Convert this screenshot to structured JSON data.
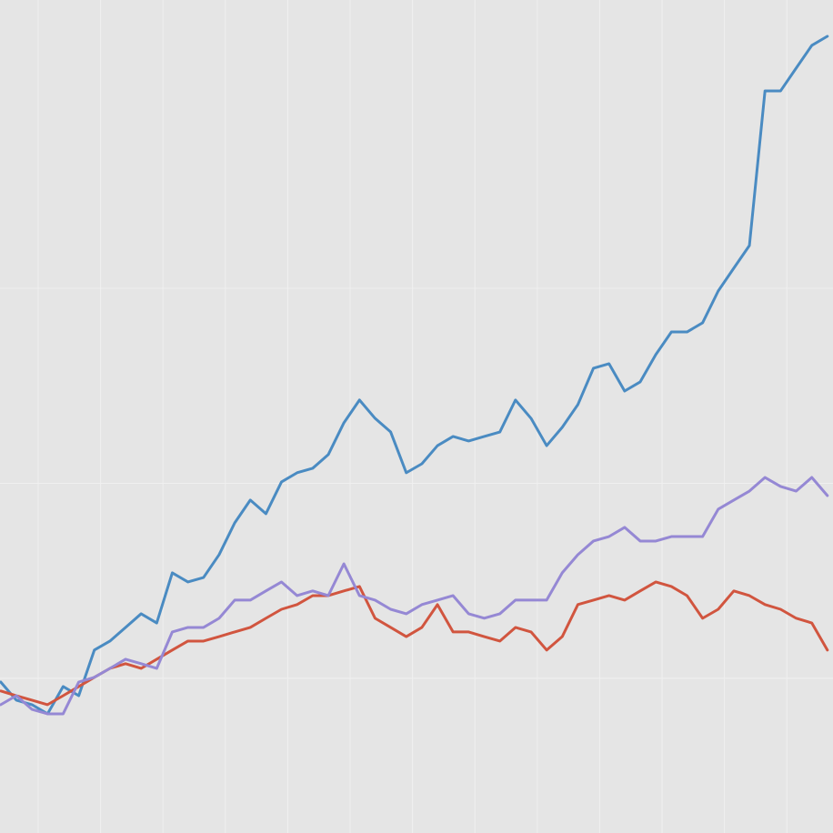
{
  "chart_data": {
    "type": "line",
    "grid": true,
    "background": "#e5e5e5",
    "grid_color": "#f0f0f0",
    "xlim": [
      0.388,
      13.74
    ],
    "ylim": [
      0.207,
      4.478
    ],
    "xticks": [
      1,
      2,
      3,
      4,
      5,
      6,
      7,
      8,
      9,
      10,
      11,
      12,
      13
    ],
    "yticks": [
      1,
      2,
      3
    ],
    "x": [
      0.4,
      0.65,
      0.9,
      1.15,
      1.4,
      1.65,
      1.9,
      2.15,
      2.4,
      2.65,
      2.9,
      3.15,
      3.4,
      3.65,
      3.9,
      4.15,
      4.4,
      4.65,
      4.9,
      5.15,
      5.4,
      5.65,
      5.9,
      6.15,
      6.4,
      6.65,
      6.9,
      7.15,
      7.4,
      7.65,
      7.9,
      8.15,
      8.4,
      8.65,
      8.9,
      9.15,
      9.4,
      9.65,
      9.9,
      10.15,
      10.4,
      10.65,
      10.9,
      11.15,
      11.4,
      11.65,
      11.9,
      12.15,
      12.4,
      12.65,
      12.9,
      13.15,
      13.4,
      13.65
    ],
    "series": [
      {
        "color": "#4a8bc2",
        "values": [
          0.981,
          0.888,
          0.865,
          0.818,
          0.958,
          0.911,
          1.145,
          1.191,
          1.261,
          1.331,
          1.284,
          1.541,
          1.494,
          1.517,
          1.634,
          1.797,
          1.914,
          1.844,
          2.007,
          2.054,
          2.077,
          2.147,
          2.31,
          2.427,
          2.333,
          2.263,
          2.054,
          2.1,
          2.193,
          2.24,
          2.217,
          2.24,
          2.263,
          2.427,
          2.333,
          2.193,
          2.287,
          2.403,
          2.59,
          2.613,
          2.473,
          2.52,
          2.66,
          2.776,
          2.776,
          2.823,
          2.986,
          3.103,
          3.219,
          4.012,
          4.012,
          4.129,
          4.245,
          4.292
        ]
      },
      {
        "color": "#d1553f",
        "values": [
          0.935,
          0.911,
          0.888,
          0.865,
          0.911,
          0.958,
          1.005,
          1.051,
          1.075,
          1.051,
          1.098,
          1.145,
          1.191,
          1.191,
          1.214,
          1.238,
          1.261,
          1.308,
          1.354,
          1.378,
          1.424,
          1.424,
          1.448,
          1.471,
          1.308,
          1.261,
          1.214,
          1.261,
          1.378,
          1.238,
          1.238,
          1.214,
          1.191,
          1.261,
          1.238,
          1.145,
          1.214,
          1.378,
          1.401,
          1.424,
          1.401,
          1.448,
          1.494,
          1.471,
          1.424,
          1.308,
          1.354,
          1.448,
          1.424,
          1.378,
          1.354,
          1.308,
          1.284,
          1.145
        ]
      },
      {
        "color": "#9588d4",
        "values": [
          0.865,
          0.911,
          0.841,
          0.818,
          0.818,
          0.981,
          1.005,
          1.051,
          1.098,
          1.075,
          1.051,
          1.238,
          1.261,
          1.261,
          1.308,
          1.401,
          1.401,
          1.448,
          1.494,
          1.424,
          1.448,
          1.424,
          1.587,
          1.424,
          1.401,
          1.354,
          1.331,
          1.378,
          1.401,
          1.424,
          1.331,
          1.308,
          1.331,
          1.401,
          1.401,
          1.401,
          1.541,
          1.634,
          1.704,
          1.727,
          1.774,
          1.704,
          1.704,
          1.727,
          1.727,
          1.727,
          1.867,
          1.914,
          1.96,
          2.03,
          1.984,
          1.96,
          2.03,
          1.937
        ]
      }
    ]
  }
}
